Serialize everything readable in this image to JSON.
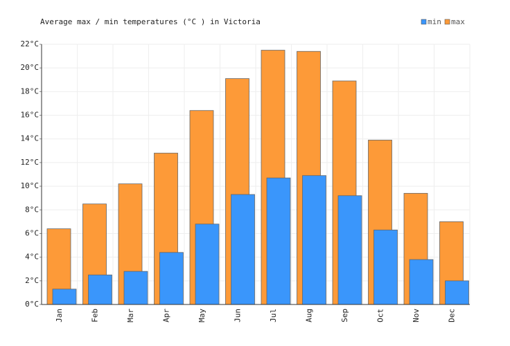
{
  "chart_data": {
    "type": "bar",
    "title": "Average max / min temperatures (°C ) in Victoria",
    "categories": [
      "Jan",
      "Feb",
      "Mar",
      "Apr",
      "May",
      "Jun",
      "Jul",
      "Aug",
      "Sep",
      "Oct",
      "Nov",
      "Dec"
    ],
    "series": [
      {
        "name": "min",
        "color": "#3a96fb",
        "values": [
          1.3,
          2.5,
          2.8,
          4.4,
          6.8,
          9.3,
          10.7,
          10.9,
          9.2,
          6.3,
          3.8,
          2.0
        ]
      },
      {
        "name": "max",
        "color": "#fd9a38",
        "values": [
          6.4,
          8.5,
          10.2,
          12.8,
          16.4,
          19.1,
          21.5,
          21.4,
          18.9,
          13.9,
          9.4,
          7.0
        ]
      }
    ],
    "ylim": [
      0,
      22
    ],
    "yticks": [
      {
        "value": 0,
        "label": "0°C"
      },
      {
        "value": 2,
        "label": "2°C"
      },
      {
        "value": 4,
        "label": "4°C"
      },
      {
        "value": 6,
        "label": "6°C"
      },
      {
        "value": 8,
        "label": "8°C"
      },
      {
        "value": 10,
        "label": "10°C"
      },
      {
        "value": 12,
        "label": "12°C"
      },
      {
        "value": 14,
        "label": "14°C"
      },
      {
        "value": 16,
        "label": "16°C"
      },
      {
        "value": 18,
        "label": "18°C"
      },
      {
        "value": 20,
        "label": "20°C"
      },
      {
        "value": 22,
        "label": "22°C"
      }
    ],
    "grid": true,
    "legend": "top-right"
  }
}
